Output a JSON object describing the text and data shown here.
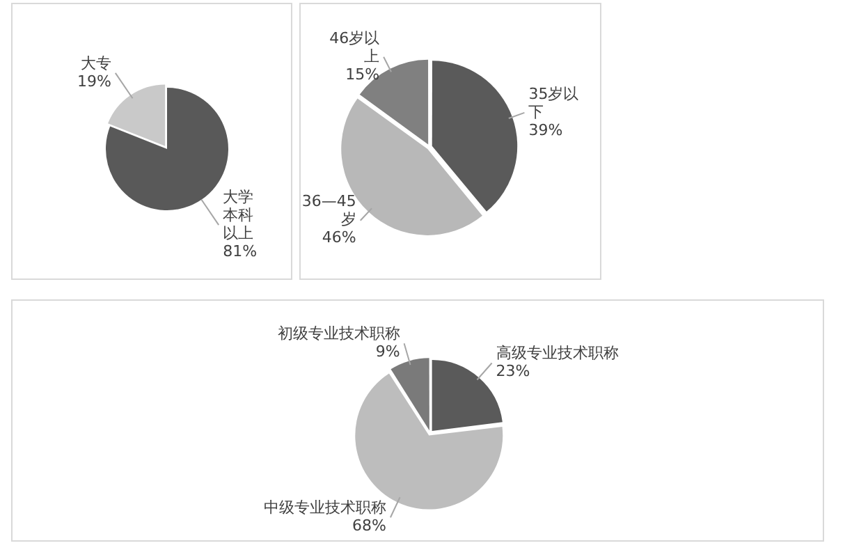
{
  "chart_data": [
    {
      "type": "pie",
      "categories": [
        "大学本科以上",
        "大专"
      ],
      "values": [
        81,
        19
      ],
      "colors": [
        "#595959",
        "#c9c9c9"
      ],
      "value_labels": [
        "81%",
        "19%"
      ],
      "legend": false
    },
    {
      "type": "pie",
      "categories": [
        "35岁以下",
        "36—45岁",
        "46岁以上"
      ],
      "values": [
        39,
        46,
        15
      ],
      "colors": [
        "#5a5a5a",
        "#b8b8b8",
        "#808080"
      ],
      "value_labels": [
        "39%",
        "46%",
        "15%"
      ],
      "legend": false
    },
    {
      "type": "pie",
      "categories": [
        "高级专业技术职称",
        "中级专业技术职称",
        "初级专业技术职称"
      ],
      "values": [
        23,
        68,
        9
      ],
      "colors": [
        "#5a5a5a",
        "#bdbdbd",
        "#7a7a7a"
      ],
      "value_labels": [
        "23%",
        "68%",
        "9%"
      ],
      "legend": false
    }
  ]
}
